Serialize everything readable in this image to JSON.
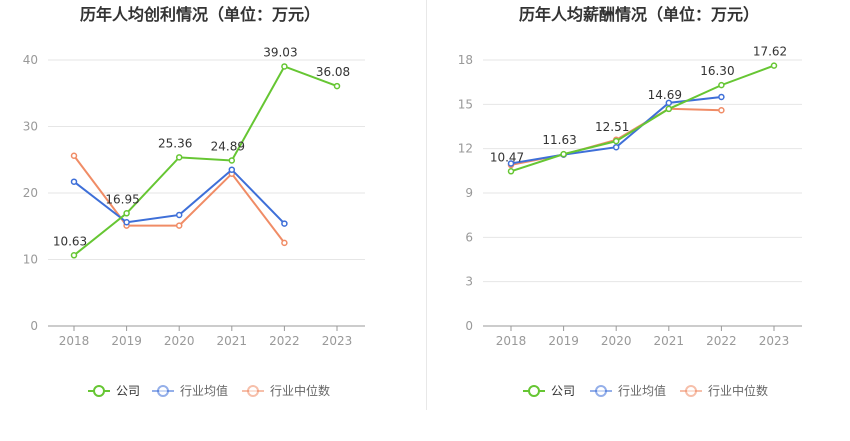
{
  "colors": {
    "company": "#66c633",
    "industry_avg": "#3e6fd8",
    "industry_median": "#f08c66",
    "grid": "#e6e6e6",
    "axis_text": "#999999",
    "title_text": "#333333"
  },
  "chart_data": [
    {
      "type": "line",
      "title": "历年人均创利情况（单位：万元）",
      "categories": [
        "2018",
        "2019",
        "2020",
        "2021",
        "2022",
        "2023"
      ],
      "ylim": [
        0,
        40
      ],
      "yticks": [
        "0",
        "10",
        "20",
        "30",
        "40"
      ],
      "grid": true,
      "legend": "bottom-center",
      "series": [
        {
          "name": "公司",
          "key": "company",
          "values": [
            10.63,
            16.95,
            25.36,
            24.89,
            39.03,
            36.08
          ],
          "labels": [
            "10.63",
            "16.95",
            "25.36",
            "24.89",
            "39.03",
            "36.08"
          ]
        },
        {
          "name": "行业均值",
          "key": "industry_avg",
          "values": [
            21.7,
            15.6,
            16.7,
            23.5,
            15.4,
            null
          ]
        },
        {
          "name": "行业中位数",
          "key": "industry_median",
          "values": [
            25.6,
            15.1,
            15.1,
            22.9,
            12.5,
            null
          ]
        }
      ]
    },
    {
      "type": "line",
      "title": "历年人均薪酬情况（单位：万元）",
      "categories": [
        "2018",
        "2019",
        "2020",
        "2021",
        "2022",
        "2023"
      ],
      "ylim": [
        0,
        18
      ],
      "yticks": [
        "0",
        "3",
        "6",
        "9",
        "12",
        "15",
        "18"
      ],
      "grid": true,
      "legend": "bottom-center",
      "series": [
        {
          "name": "公司",
          "key": "company",
          "values": [
            10.47,
            11.63,
            12.51,
            14.69,
            16.3,
            17.62
          ],
          "labels": [
            "10.47",
            "11.63",
            "12.51",
            "14.69",
            "16.30",
            "17.62"
          ]
        },
        {
          "name": "行业均值",
          "key": "industry_avg",
          "values": [
            11.0,
            11.6,
            12.1,
            15.1,
            15.5,
            null
          ]
        },
        {
          "name": "行业中位数",
          "key": "industry_median",
          "values": [
            10.9,
            11.6,
            12.6,
            14.7,
            14.6,
            null
          ]
        }
      ]
    }
  ]
}
